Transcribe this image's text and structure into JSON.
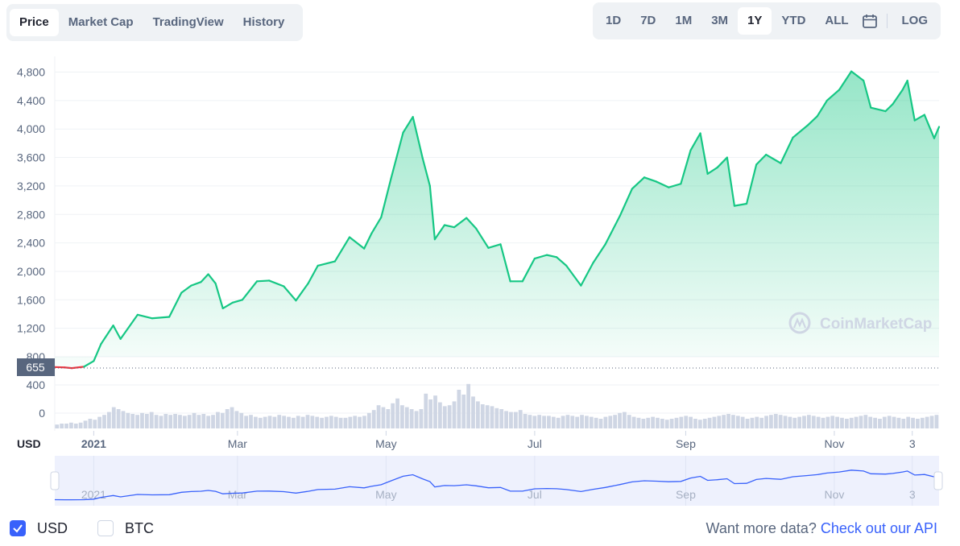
{
  "tabs_left": [
    "Price",
    "Market Cap",
    "TradingView",
    "History"
  ],
  "tabs_left_active": 0,
  "tabs_right": [
    "1D",
    "7D",
    "1M",
    "3M",
    "1Y",
    "YTD",
    "ALL"
  ],
  "tabs_right_active": 4,
  "log_label": "LOG",
  "watermark": "CoinMarketCap",
  "currency_label": "USD",
  "current_price_label": "655",
  "footer": {
    "usd_label": "USD",
    "btc_label": "BTC",
    "more_data": "Want more data?",
    "api_link": "Check out our API"
  },
  "colors": {
    "up": "#16c784",
    "down": "#ea3943",
    "accent": "#3861fb",
    "volume": "#cfd6e4"
  },
  "chart_data": {
    "type": "line",
    "series": [
      {
        "x": [
          "2020-12-16",
          "2020-12-20",
          "2020-12-23",
          "2020-12-28",
          "2021-01-01",
          "2021-01-04",
          "2021-01-09",
          "2021-01-12",
          "2021-01-19",
          "2021-01-25",
          "2021-02-01",
          "2021-02-06",
          "2021-02-10",
          "2021-02-14",
          "2021-02-17",
          "2021-02-20",
          "2021-02-23",
          "2021-02-27",
          "2021-03-03",
          "2021-03-09",
          "2021-03-14",
          "2021-03-20",
          "2021-03-25",
          "2021-03-30",
          "2021-04-03",
          "2021-04-10",
          "2021-04-16",
          "2021-04-22",
          "2021-04-25",
          "2021-04-29",
          "2021-05-03",
          "2021-05-08",
          "2021-05-12",
          "2021-05-16",
          "2021-05-19",
          "2021-05-21",
          "2021-05-25",
          "2021-05-29",
          "2021-06-03",
          "2021-06-07",
          "2021-06-12",
          "2021-06-17",
          "2021-06-21",
          "2021-06-26",
          "2021-07-01",
          "2021-07-06",
          "2021-07-10",
          "2021-07-14",
          "2021-07-20",
          "2021-07-25",
          "2021-07-30",
          "2021-08-05",
          "2021-08-10",
          "2021-08-15",
          "2021-08-20",
          "2021-08-25",
          "2021-08-30",
          "2021-09-03",
          "2021-09-07",
          "2021-09-10",
          "2021-09-14",
          "2021-09-18",
          "2021-09-21",
          "2021-09-26",
          "2021-09-30",
          "2021-10-04",
          "2021-10-10",
          "2021-10-15",
          "2021-10-21",
          "2021-10-25",
          "2021-10-29",
          "2021-11-03",
          "2021-11-08",
          "2021-11-13",
          "2021-11-16",
          "2021-11-22",
          "2021-11-25",
          "2021-11-29",
          "2021-12-01",
          "2021-12-04",
          "2021-12-08",
          "2021-12-12",
          "2021-12-14"
        ],
        "values": [
          655,
          650,
          640,
          660,
          740,
          980,
          1240,
          1050,
          1390,
          1340,
          1360,
          1700,
          1800,
          1850,
          1960,
          1830,
          1480,
          1560,
          1600,
          1860,
          1870,
          1790,
          1590,
          1830,
          2080,
          2140,
          2480,
          2320,
          2530,
          2760,
          3300,
          3950,
          4170,
          3590,
          3200,
          2450,
          2650,
          2620,
          2750,
          2600,
          2330,
          2380,
          1860,
          1860,
          2180,
          2230,
          2200,
          2080,
          1800,
          2120,
          2380,
          2780,
          3160,
          3320,
          3260,
          3180,
          3230,
          3700,
          3940,
          3370,
          3460,
          3600,
          2920,
          2950,
          3500,
          3640,
          3520,
          3880,
          4050,
          4180,
          4400,
          4550,
          4810,
          4680,
          4300,
          4250,
          4350,
          4550,
          4680,
          4120,
          4200,
          3870,
          4030
        ]
      }
    ],
    "volume_bars": [
      4,
      5,
      5,
      6,
      5,
      6,
      8,
      10,
      9,
      12,
      14,
      17,
      22,
      20,
      18,
      16,
      15,
      14,
      16,
      15,
      17,
      14,
      13,
      15,
      14,
      15,
      14,
      13,
      14,
      16,
      14,
      15,
      13,
      14,
      17,
      16,
      20,
      22,
      18,
      16,
      13,
      14,
      12,
      11,
      12,
      13,
      12,
      14,
      13,
      12,
      11,
      13,
      12,
      14,
      13,
      12,
      11,
      12,
      13,
      12,
      11,
      11,
      12,
      13,
      12,
      13,
      16,
      19,
      24,
      22,
      20,
      26,
      31,
      24,
      22,
      20,
      18,
      20,
      36,
      30,
      34,
      27,
      23,
      24,
      28,
      40,
      35,
      46,
      33,
      28,
      25,
      24,
      23,
      21,
      20,
      18,
      17,
      17,
      19,
      15,
      14,
      13,
      14,
      13,
      13,
      12,
      11,
      13,
      14,
      13,
      12,
      14,
      13,
      12,
      11,
      10,
      12,
      13,
      14,
      16,
      17,
      14,
      12,
      11,
      10,
      11,
      12,
      11,
      10,
      9,
      10,
      11,
      12,
      13,
      12,
      10,
      9,
      10,
      11,
      12,
      13,
      14,
      15,
      14,
      13,
      12,
      10,
      11,
      12,
      11,
      13,
      14,
      15,
      14,
      13,
      12,
      11,
      12,
      13,
      14,
      13,
      12,
      11,
      12,
      13,
      12,
      11,
      10,
      11,
      12,
      13,
      14,
      12,
      11,
      10,
      12,
      13,
      12,
      11,
      10,
      12,
      11,
      10,
      11,
      12,
      13,
      14
    ],
    "yticks": [
      0,
      400,
      800,
      1200,
      1600,
      2000,
      2400,
      2800,
      3200,
      3600,
      4000,
      4400,
      4800
    ],
    "ytick_labels": [
      "0",
      "400",
      "800",
      "1,200",
      "1,600",
      "2,000",
      "2,400",
      "2,800",
      "3,200",
      "3,600",
      "4,000",
      "4,400",
      "4,800"
    ],
    "xticks": [
      "2021",
      "Mar",
      "May",
      "Jul",
      "Sep",
      "Nov",
      "3"
    ],
    "xtick_dates": [
      "2021-01-01",
      "2021-03-01",
      "2021-05-01",
      "2021-07-01",
      "2021-09-01",
      "2021-11-01",
      "2021-12-03"
    ],
    "xlim": [
      "2020-12-16",
      "2021-12-14"
    ],
    "grid": true
  }
}
